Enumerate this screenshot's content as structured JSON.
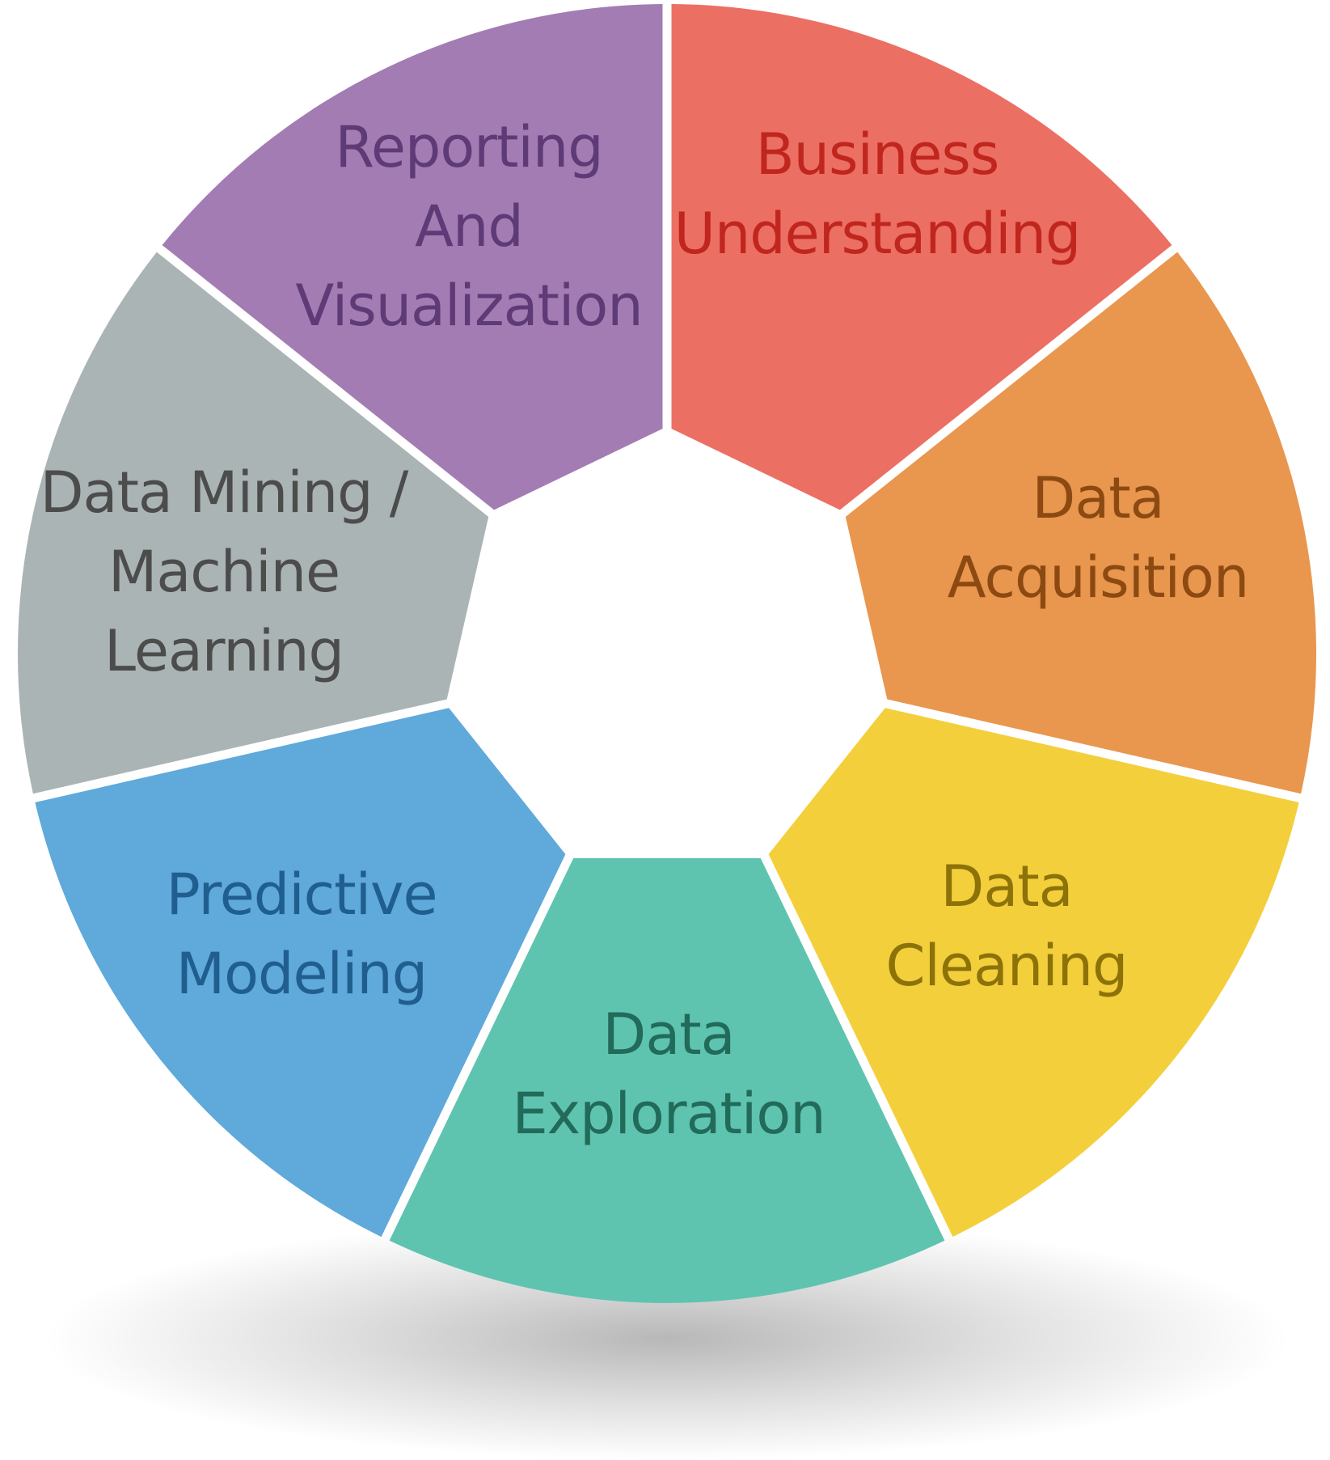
{
  "diagram": {
    "segments": [
      {
        "id": "business-understanding",
        "lines": [
          "Business",
          "Understanding"
        ],
        "fill": "#EC6F63",
        "text_color": "#C0261D"
      },
      {
        "id": "data-acquisition",
        "lines": [
          "Data",
          "Acquisition"
        ],
        "fill": "#E9964E",
        "text_color": "#8C4A12"
      },
      {
        "id": "data-cleaning",
        "lines": [
          "Data",
          "Cleaning"
        ],
        "fill": "#F3CF3C",
        "text_color": "#8C7208"
      },
      {
        "id": "data-exploration",
        "lines": [
          "Data",
          "Exploration"
        ],
        "fill": "#5EC4AF",
        "text_color": "#226A59"
      },
      {
        "id": "predictive-modeling",
        "lines": [
          "Predictive",
          "Modeling"
        ],
        "fill": "#5FA9DB",
        "text_color": "#1F5E8E"
      },
      {
        "id": "data-mining-machine-learning",
        "lines": [
          "Data Mining /",
          "Machine",
          "Learning"
        ],
        "fill": "#AAB4B5",
        "text_color": "#4C4C4C"
      },
      {
        "id": "reporting-and-visualization",
        "lines": [
          "Reporting",
          "And",
          "Visualization"
        ],
        "fill": "#A37CB4",
        "text_color": "#5E3A76"
      }
    ]
  }
}
